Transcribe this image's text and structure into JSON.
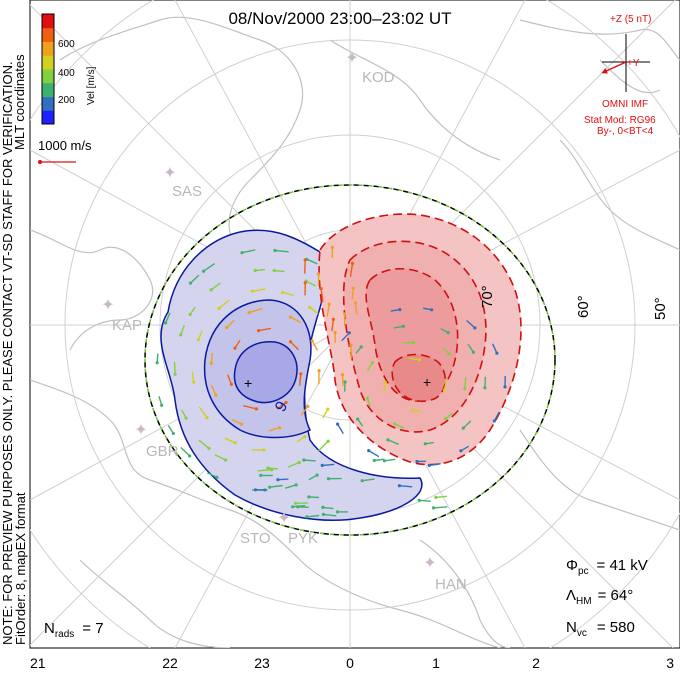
{
  "title": "08/Nov/2000 23:00–23:02 UT",
  "side_note_line1": "NOTE: FOR PREVIEW PURPOSES ONLY. PLEASE CONTACT VT-SD STAFF FOR VERIFICATION.",
  "side_note_line2": "FitOrder: 8, mapEX format",
  "mlt_coord_label": "MLT coordinates",
  "colorbar": {
    "label": "Vel [m/s]",
    "ticks": [
      "600",
      "400",
      "200"
    ],
    "colors": [
      "#2020ff",
      "#3070c0",
      "#40b070",
      "#80d040",
      "#d0d020",
      "#f0a020",
      "#f06010",
      "#e01010"
    ]
  },
  "vector_scale_label": "1000 m/s",
  "imf": {
    "z_label": "+Z (5 nT)",
    "y_label": "+Y",
    "source": "OMNI IMF",
    "stat_mod": "Stat Mod: RG96",
    "condition": "By-, 0<BT<4"
  },
  "stations": [
    "KOD",
    "SAS",
    "KAP",
    "GBR",
    "STO",
    "PYK",
    "HAN"
  ],
  "lat_labels": [
    "70°",
    "60°",
    "50°"
  ],
  "mlt_labels": [
    "21",
    "22",
    "23",
    "0",
    "1",
    "2",
    "3"
  ],
  "potential_label": "9",
  "stats": {
    "phi_label": "Φ",
    "phi_sub": "pc",
    "phi_value": "= 41 kV",
    "lambda_label": "Λ",
    "lambda_sub": "HM",
    "lambda_value": "= 64°",
    "nvc_label": "N",
    "nvc_sub": "vc",
    "nvc_value": "= 580",
    "nrads_label": "N",
    "nrads_sub": "rads",
    "nrads_value": "= 7"
  },
  "colors": {
    "positive_cell": "#f4c4c4",
    "negative_cell": "#d4d4ee",
    "positive_line": "#d01010",
    "negative_line": "#0a1aa0",
    "imf_text": "#e01010",
    "coast": "#c0c0c0",
    "grid": "#d0d0d0",
    "boundary_green": "#70c030"
  }
}
